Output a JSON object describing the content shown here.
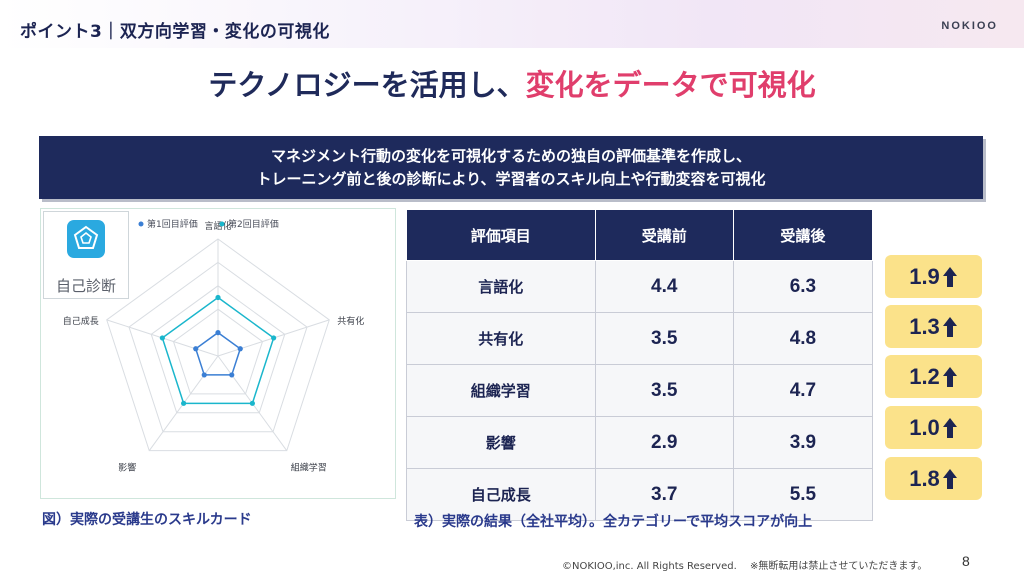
{
  "header": {
    "section_title": "ポイント3｜双方向学習・変化の可視化",
    "logo": "NOKIOO"
  },
  "headline": {
    "main": "テクノロジーを活用し、",
    "accent": "変化をデータで可視化"
  },
  "banner": {
    "line1": "マネジメント行動の変化を可視化するための独自の評価基準を作成し、",
    "line2": "トレーニング前と後の診断により、学習者のスキル向上や行動変容を可視化"
  },
  "card": {
    "icon_label": "自己診断",
    "caption": "図）実際の受講生のスキルカード"
  },
  "colors": {
    "navy": "#1e2a5c",
    "accent": "#e03e6c",
    "series1": "#3b7fd4",
    "series2": "#1ab6cc",
    "badge": "#fbe28a"
  },
  "chart_data": {
    "type": "radar",
    "axes": [
      "言語化",
      "共有化",
      "組織学習",
      "影響",
      "自己成長"
    ],
    "rmax": 10,
    "rings": 5,
    "series": [
      {
        "name": "第1回目評価",
        "values": [
          2.0,
          2.0,
          2.0,
          2.0,
          2.0
        ]
      },
      {
        "name": "第2回目評価",
        "values": [
          5.0,
          5.0,
          5.0,
          5.0,
          5.0
        ]
      }
    ]
  },
  "table": {
    "headers": [
      "評価項目",
      "受講前",
      "受講後"
    ],
    "rows": [
      {
        "item": "言語化",
        "before": "4.4",
        "after": "6.3",
        "diff": "1.9"
      },
      {
        "item": "共有化",
        "before": "3.5",
        "after": "4.8",
        "diff": "1.3"
      },
      {
        "item": "組織学習",
        "before": "3.5",
        "after": "4.7",
        "diff": "1.2"
      },
      {
        "item": "影響",
        "before": "2.9",
        "after": "3.9",
        "diff": "1.0"
      },
      {
        "item": "自己成長",
        "before": "3.7",
        "after": "5.5",
        "diff": "1.8"
      }
    ],
    "caption": "表）実際の結果（全社平均）。全カテゴリーで平均スコアが向上"
  },
  "footer": {
    "copyright": "©NOKIOO,inc. All Rights Reserved.　 ※無断転用は禁止させていただきます。",
    "page": "8"
  }
}
